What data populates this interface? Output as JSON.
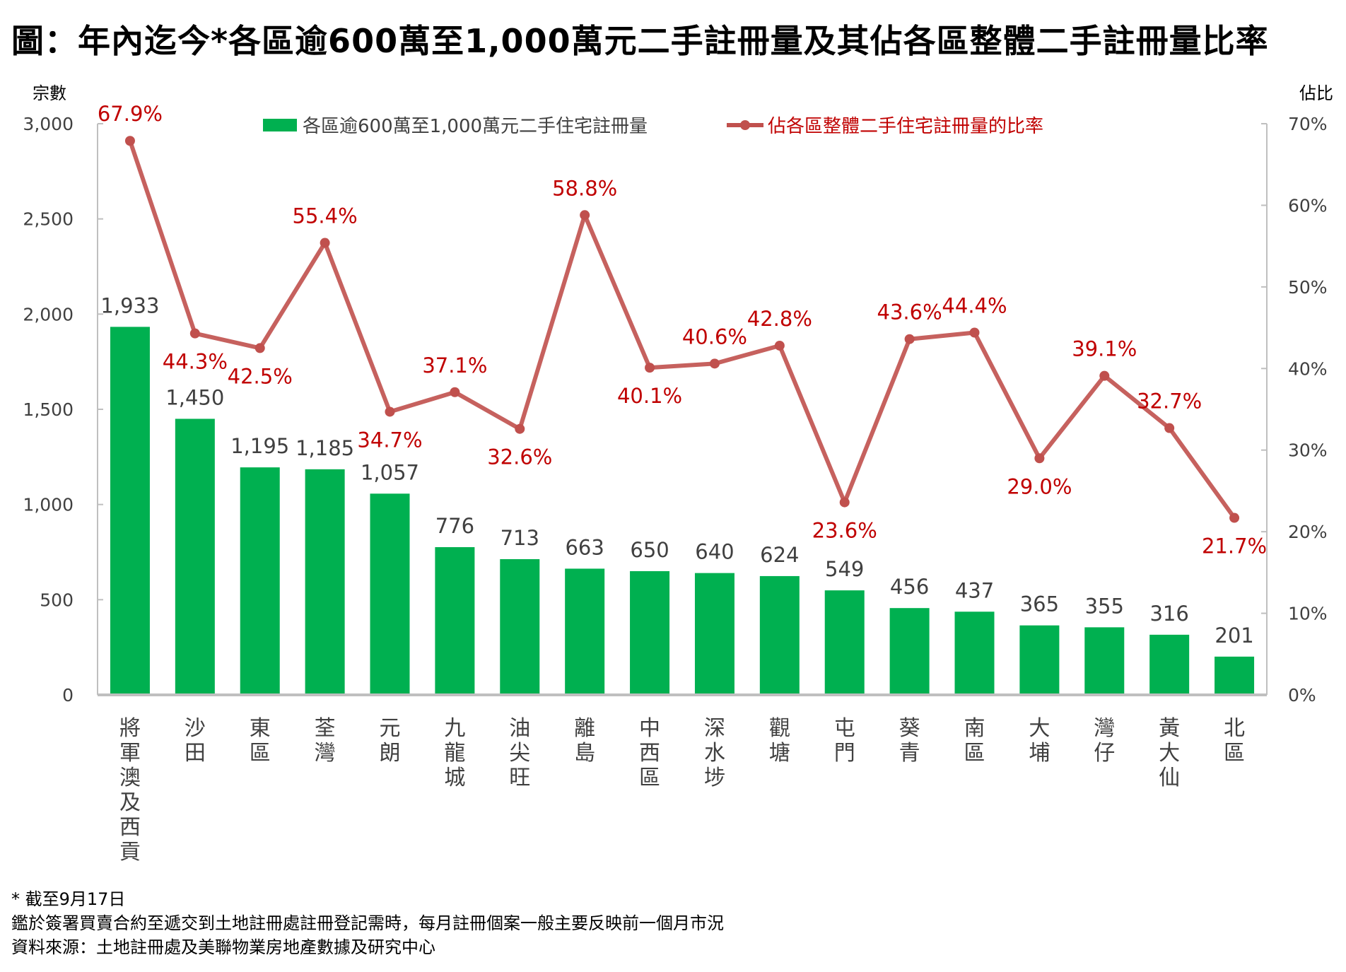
{
  "title": "圖：年內迄今*各區逾600萬至1,000萬元二手註冊量及其佔各區整體二手註冊量比率",
  "chart_data": {
    "type": "bar",
    "title": "圖：年內迄今*各區逾600萬至1,000萬元二手註冊量及其佔各區整體二手註冊量比率",
    "xlabel": "",
    "ylabel": "宗數",
    "y2label": "佔比",
    "ylim": [
      0,
      3000
    ],
    "y2lim": [
      0,
      70
    ],
    "yticks": [
      "0",
      "500",
      "1,000",
      "1,500",
      "2,000",
      "2,500",
      "3,000"
    ],
    "y2ticks": [
      "0%",
      "10%",
      "20%",
      "30%",
      "40%",
      "50%",
      "60%",
      "70%"
    ],
    "grid": false,
    "legend_placement": "top",
    "categories": [
      "將軍澳及西貢",
      "沙田",
      "東區",
      "荃灣",
      "元朗",
      "九龍城",
      "油尖旺",
      "離島",
      "中西區",
      "深水埗",
      "觀塘",
      "屯門",
      "葵青",
      "南區",
      "大埔",
      "灣仔",
      "黃大仙",
      "北區"
    ],
    "series": [
      {
        "name": "各區逾600萬至1,000萬元二手住宅註冊量",
        "type": "bar",
        "axis": "left",
        "color": "#00B050",
        "values": [
          1933,
          1450,
          1195,
          1185,
          1057,
          776,
          713,
          663,
          650,
          640,
          624,
          549,
          456,
          437,
          365,
          355,
          316,
          201
        ],
        "labels": [
          "1,933",
          "1,450",
          "1,195",
          "1,185",
          "1,057",
          "776",
          "713",
          "663",
          "650",
          "640",
          "624",
          "549",
          "456",
          "437",
          "365",
          "355",
          "316",
          "201"
        ]
      },
      {
        "name": "佔各區整體二手住宅註冊量的比率",
        "type": "line",
        "axis": "right",
        "color": "#C0504D",
        "label_color": "#C00000",
        "values": [
          67.9,
          44.3,
          42.5,
          55.4,
          34.7,
          37.1,
          32.6,
          58.8,
          40.1,
          40.6,
          42.8,
          23.6,
          43.6,
          44.4,
          29.0,
          39.1,
          32.7,
          21.7
        ],
        "labels": [
          "67.9%",
          "44.3%",
          "42.5%",
          "55.4%",
          "34.7%",
          "37.1%",
          "32.6%",
          "58.8%",
          "40.1%",
          "40.6%",
          "42.8%",
          "23.6%",
          "43.6%",
          "44.4%",
          "29.0%",
          "39.1%",
          "32.7%",
          "21.7%"
        ],
        "label_positions": [
          "above",
          "below",
          "below",
          "above",
          "below",
          "above",
          "below",
          "above",
          "below",
          "above",
          "above",
          "below",
          "above",
          "above",
          "below",
          "above",
          "above",
          "below"
        ]
      }
    ]
  },
  "footer": {
    "note": "* 截至9月17日",
    "disclaimer": "鑑於簽署買賣合約至遞交到土地註冊處註冊登記需時，每月註冊個案一般主要反映前一個月市況",
    "source": "資料來源：土地註冊處及美聯物業房地產數據及研究中心"
  },
  "colors": {
    "axis": "#BFBFBF",
    "tick_text": "#404040",
    "bar_label": "#404040"
  }
}
